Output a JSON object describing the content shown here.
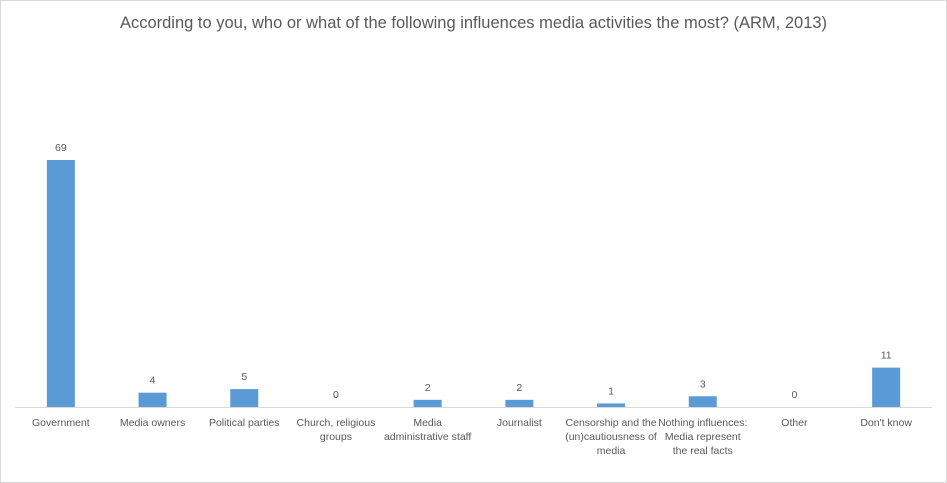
{
  "chart_data": {
    "type": "bar",
    "title": "According to you, who or what of the following influences media activities the most? (ARM, 2013)",
    "categories": [
      "Government",
      "Media owners",
      "Political parties",
      "Church, religious groups",
      "Media administrative staff",
      "Journalist",
      "Censorship and the (un)cautiousness of media",
      "Nothing influences: Media represent the real facts",
      "Other",
      "Don't know"
    ],
    "values": [
      69,
      4,
      5,
      0,
      2,
      2,
      1,
      3,
      0,
      11
    ],
    "ylim": [
      0,
      70
    ],
    "grid": false,
    "legend": "none",
    "bar_color": "#5b9bd5",
    "axis_color": "#d9d9d9",
    "text_color": "#595959"
  }
}
